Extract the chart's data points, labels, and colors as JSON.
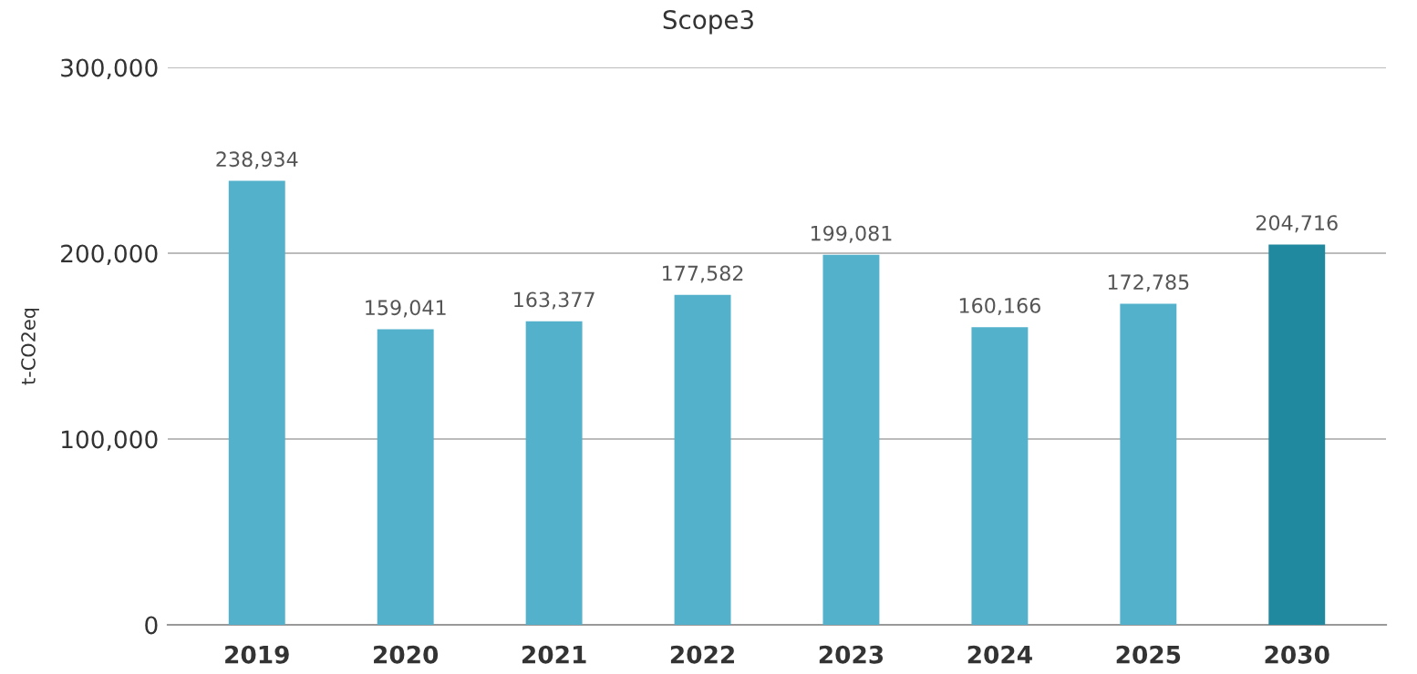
{
  "chart_data": {
    "type": "bar",
    "title": "Scope3",
    "ylabel": "t-CO2eq",
    "categories": [
      "2019",
      "2020",
      "2021",
      "2022",
      "2023",
      "2024",
      "2025",
      "2030"
    ],
    "values": [
      238934,
      159041,
      163377,
      177582,
      199081,
      160166,
      172785,
      204716
    ],
    "colors": [
      "#53b1cb",
      "#53b1cb",
      "#53b1cb",
      "#53b1cb",
      "#53b1cb",
      "#53b1cb",
      "#53b1cb",
      "#2089a0"
    ],
    "value_labels": [
      "238,934",
      "159,041",
      "163,377",
      "177,582",
      "199,081",
      "160,166",
      "172,785",
      "204,716"
    ],
    "ylim": [
      0,
      300000
    ],
    "yticks": [
      {
        "value": 0,
        "label": "0"
      },
      {
        "value": 100000,
        "label": "100,000"
      },
      {
        "value": 200000,
        "label": "200,000"
      },
      {
        "value": 300000,
        "label": "300,000"
      }
    ],
    "grid": "y",
    "legend": false
  }
}
